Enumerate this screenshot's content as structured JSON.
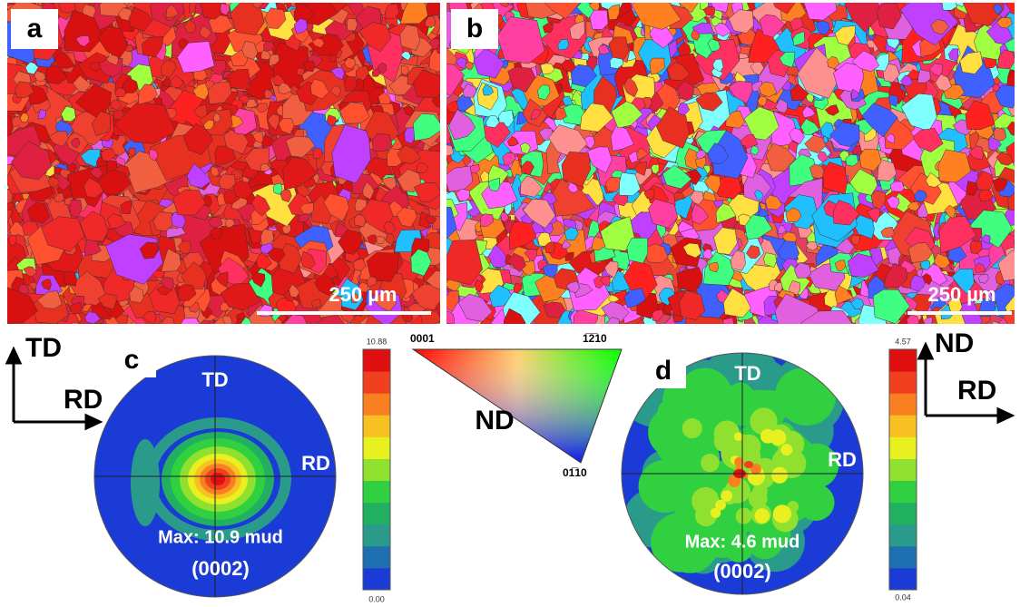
{
  "panels": {
    "a": {
      "label": "a",
      "scale_bar": "250 µm"
    },
    "b": {
      "label": "b",
      "scale_bar": "250 µm"
    },
    "c": {
      "label": "c",
      "axis_top": "TD",
      "axis_right": "RD",
      "max": "Max: 10.9 mud",
      "plane": "(0002)",
      "bar_max": "10.88",
      "bar_min": "0.00",
      "frame_up": "TD",
      "frame_right": "RD"
    },
    "d": {
      "label": "d",
      "axis_top": "TD",
      "axis_right": "RD",
      "max": "Max: 4.6 mud",
      "plane": "(0002)",
      "bar_max": "4.57",
      "bar_min": "0.04",
      "frame_up": "ND",
      "frame_right": "RD"
    },
    "ipf": {
      "corner_left": "0001",
      "corner_right": "1̅2̅10",
      "corner_bottom": "01̅10",
      "direction": "ND"
    }
  }
}
